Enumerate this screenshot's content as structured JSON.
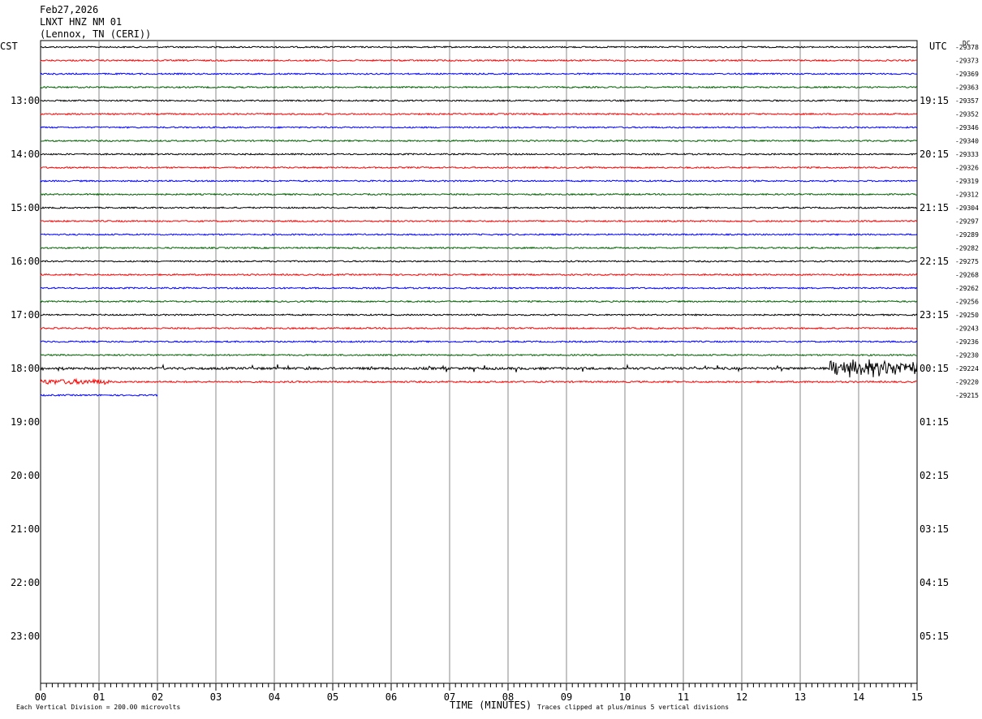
{
  "header": {
    "date": "Feb27,2026",
    "station": "LNXT HNZ NM 01",
    "location": "(Lennox, TN (CERI))"
  },
  "chart_data": {
    "type": "line",
    "left_timezone": "CST",
    "right_timezone": "UTC",
    "dc_label": "DC",
    "xlabel": "TIME (MINUTES)",
    "x_ticks": [
      "00",
      "01",
      "02",
      "03",
      "04",
      "05",
      "06",
      "07",
      "08",
      "09",
      "10",
      "11",
      "12",
      "13",
      "14",
      "15"
    ],
    "xlim": [
      0,
      15
    ],
    "left_hour_labels": [
      "13:00",
      "14:00",
      "15:00",
      "16:00",
      "17:00",
      "18:00",
      "19:00",
      "20:00",
      "21:00",
      "22:00",
      "23:00"
    ],
    "right_hour_labels": [
      "19:15",
      "20:15",
      "21:15",
      "22:15",
      "23:15",
      "00:15",
      "01:15",
      "02:15",
      "03:15",
      "04:15",
      "05:15"
    ],
    "trace_colors": [
      "#000000",
      "#ff0000",
      "#0000ff",
      "#006400"
    ],
    "dc_values": [
      "-29378",
      "-29373",
      "-29369",
      "-29363",
      "-29357",
      "-29352",
      "-29346",
      "-29340",
      "-29333",
      "-29326",
      "-29319",
      "-29312",
      "-29304",
      "-29297",
      "-29289",
      "-29282",
      "-29275",
      "-29268",
      "-29262",
      "-29256",
      "-29250",
      "-29243",
      "-29236",
      "-29230",
      "-29224",
      "-29220",
      "-29215"
    ],
    "last_trace_end_minute": 2,
    "scale_note": "Each Vertical Division =  200.00 microvolts",
    "clip_note": "Traces clipped at plus/minus 5 vertical divisions",
    "grid": true
  }
}
